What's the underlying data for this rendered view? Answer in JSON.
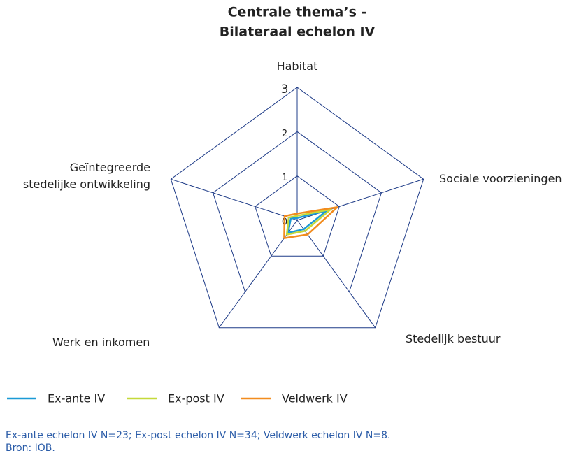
{
  "chart_data": {
    "type": "radar",
    "title": [
      "Centrale thema’s -",
      "Bilateraal echelon IV"
    ],
    "categories": [
      "Habitat",
      "Sociale voorzieningen",
      "Stedelijk bestuur",
      "Werk en inkomen",
      "Geïntegreerde\nstedelijke ontwikkeling"
    ],
    "series": [
      {
        "name": "Ex-ante IV",
        "color": "#1b9ad6",
        "values": [
          0.05,
          0.7,
          0.25,
          0.35,
          0.15
        ]
      },
      {
        "name": "Ex-post IV",
        "color": "#c5d93a",
        "values": [
          0.1,
          0.8,
          0.3,
          0.4,
          0.2
        ]
      },
      {
        "name": "Veldwerk IV",
        "color": "#f28c1e",
        "values": [
          0.15,
          0.95,
          0.4,
          0.5,
          0.3
        ]
      }
    ],
    "rlim": [
      0,
      3
    ],
    "rticks": [
      0,
      1,
      2,
      3
    ],
    "grid_color": "#1f3c88",
    "notes": [
      "Ex-ante echelon IV N=23; Ex-post echelon IV N=34; Veldwerk echelon IV N=8.",
      "Bron: IOB."
    ]
  }
}
